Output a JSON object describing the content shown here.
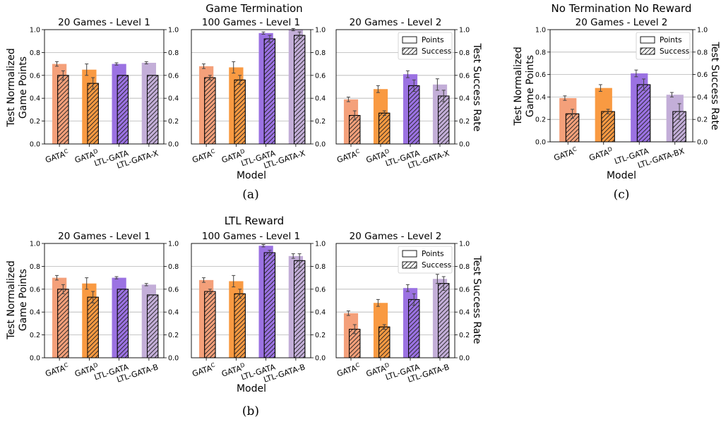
{
  "figure": {
    "panel_a": {
      "title": "Game Termination",
      "caption": "(a)"
    },
    "panel_b": {
      "title": "LTL Reward",
      "caption": "(b)"
    },
    "panel_c": {
      "title": "No Termination No Reward",
      "caption": "(c)"
    },
    "ylabel_left": [
      "Test Normalized",
      "Game Points"
    ],
    "ylabel_right": "Test Success Rate",
    "xlabel": "Model",
    "legend": {
      "points": "Points",
      "success": "Success"
    }
  },
  "colors": {
    "GATA_C": "#f4a07a",
    "GATA_D": "#f99a42",
    "LTL_GATA": "#9b72e2",
    "LTL_GATA_variant": "#c3aed8"
  },
  "chart_data": [
    {
      "type": "bar",
      "panel": "a",
      "title": "20 Games - Level 1",
      "categories": [
        "GATA^C",
        "GATA^D",
        "LTL-GATA",
        "LTL-GATA-X"
      ],
      "ylim": [
        0,
        1
      ],
      "grid": true,
      "legend": "none",
      "series": [
        {
          "name": "Points",
          "values": [
            0.7,
            0.65,
            0.7,
            0.71
          ],
          "errors": [
            0.02,
            0.05,
            0.01,
            0.01
          ]
        },
        {
          "name": "Success",
          "values": [
            0.6,
            0.53,
            0.6,
            0.6
          ],
          "errors": [
            0.04,
            0.05,
            0.0,
            0.0
          ]
        }
      ]
    },
    {
      "type": "bar",
      "panel": "a",
      "title": "100 Games - Level 1",
      "categories": [
        "GATA^C",
        "GATA^D",
        "LTL-GATA",
        "LTL-GATA-X"
      ],
      "ylim": [
        0,
        1
      ],
      "grid": true,
      "legend": "none",
      "series": [
        {
          "name": "Points",
          "values": [
            0.68,
            0.67,
            0.97,
            1.0
          ],
          "errors": [
            0.02,
            0.05,
            0.01,
            0.01
          ]
        },
        {
          "name": "Success",
          "values": [
            0.58,
            0.56,
            0.92,
            0.95
          ],
          "errors": [
            0.02,
            0.04,
            0.03,
            0.03
          ]
        }
      ]
    },
    {
      "type": "bar",
      "panel": "a",
      "title": "20 Games - Level 2",
      "categories": [
        "GATA^C",
        "GATA^D",
        "LTL-GATA",
        "LTL-GATA-X"
      ],
      "ylim": [
        0,
        1
      ],
      "grid": true,
      "legend": "top-right",
      "series": [
        {
          "name": "Points",
          "values": [
            0.39,
            0.48,
            0.61,
            0.52
          ],
          "errors": [
            0.02,
            0.03,
            0.03,
            0.05
          ]
        },
        {
          "name": "Success",
          "values": [
            0.25,
            0.27,
            0.51,
            0.42
          ],
          "errors": [
            0.04,
            0.02,
            0.05,
            0.05
          ]
        }
      ]
    },
    {
      "type": "bar",
      "panel": "b",
      "title": "20 Games - Level 1",
      "categories": [
        "GATA^C",
        "GATA^D",
        "LTL-GATA",
        "LTL-GATA-B"
      ],
      "ylim": [
        0,
        1
      ],
      "grid": true,
      "legend": "none",
      "series": [
        {
          "name": "Points",
          "values": [
            0.7,
            0.65,
            0.7,
            0.64
          ],
          "errors": [
            0.02,
            0.05,
            0.01,
            0.01
          ]
        },
        {
          "name": "Success",
          "values": [
            0.6,
            0.53,
            0.6,
            0.55
          ],
          "errors": [
            0.04,
            0.05,
            0.0,
            0.0
          ]
        }
      ]
    },
    {
      "type": "bar",
      "panel": "b",
      "title": "100 Games - Level 1",
      "categories": [
        "GATA^C",
        "GATA^D",
        "LTL-GATA",
        "LTL-GATA-B"
      ],
      "ylim": [
        0,
        1
      ],
      "grid": true,
      "legend": "none",
      "series": [
        {
          "name": "Points",
          "values": [
            0.68,
            0.67,
            0.98,
            0.89
          ],
          "errors": [
            0.02,
            0.05,
            0.01,
            0.02
          ]
        },
        {
          "name": "Success",
          "values": [
            0.58,
            0.56,
            0.92,
            0.85
          ],
          "errors": [
            0.02,
            0.04,
            0.02,
            0.06
          ]
        }
      ]
    },
    {
      "type": "bar",
      "panel": "b",
      "title": "20 Games - Level 2",
      "categories": [
        "GATA^C",
        "GATA^D",
        "LTL-GATA",
        "LTL-GATA-B"
      ],
      "ylim": [
        0,
        1
      ],
      "grid": true,
      "legend": "top-right",
      "series": [
        {
          "name": "Points",
          "values": [
            0.39,
            0.48,
            0.61,
            0.69
          ],
          "errors": [
            0.02,
            0.03,
            0.03,
            0.04
          ]
        },
        {
          "name": "Success",
          "values": [
            0.25,
            0.27,
            0.51,
            0.65
          ],
          "errors": [
            0.04,
            0.02,
            0.05,
            0.06
          ]
        }
      ]
    },
    {
      "type": "bar",
      "panel": "c",
      "title": "20 Games - Level 2",
      "categories": [
        "GATA^C",
        "GATA^D",
        "LTL-GATA",
        "LTL-GATA-BX"
      ],
      "ylim": [
        0,
        1
      ],
      "grid": true,
      "legend": "top-right",
      "series": [
        {
          "name": "Points",
          "values": [
            0.39,
            0.48,
            0.61,
            0.42
          ],
          "errors": [
            0.02,
            0.03,
            0.03,
            0.02
          ]
        },
        {
          "name": "Success",
          "values": [
            0.25,
            0.27,
            0.51,
            0.27
          ],
          "errors": [
            0.04,
            0.02,
            0.05,
            0.07
          ]
        }
      ]
    }
  ]
}
